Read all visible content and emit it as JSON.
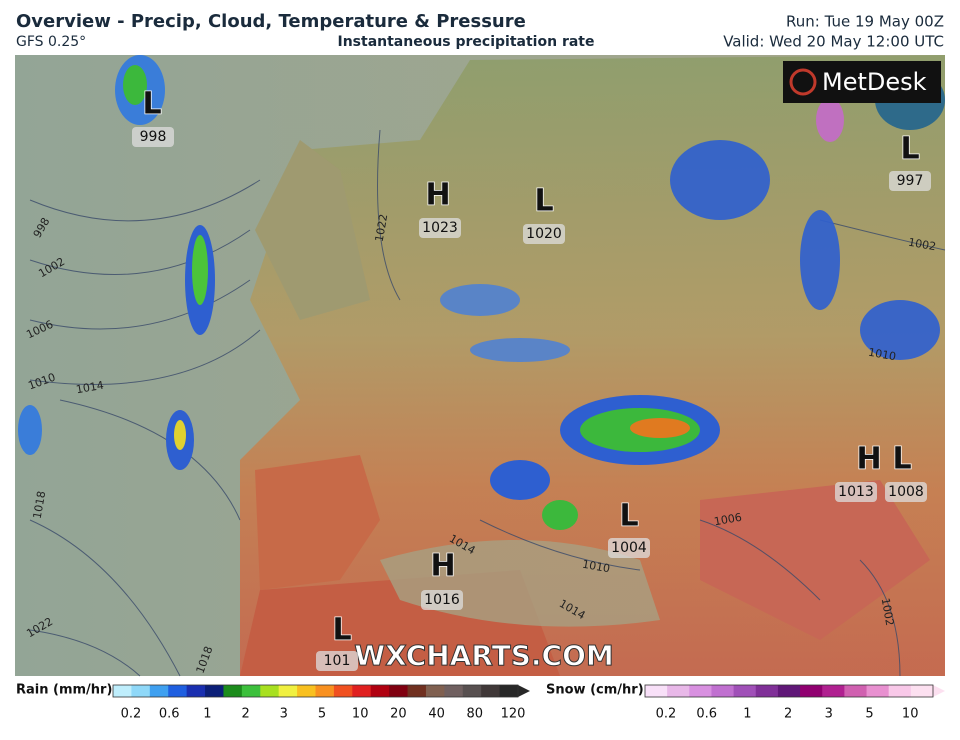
{
  "header": {
    "title": "Overview - Precip, Cloud, Temperature & Pressure",
    "model": "GFS 0.25°",
    "subtitle": "Instantaneous precipitation rate",
    "run": "Run: Tue 19 May 00Z",
    "valid": "Valid: Wed 20 May 12:00 UTC"
  },
  "logo": "MetDesk",
  "watermark": "WXCHARTS.COM",
  "pressure_centers": [
    {
      "type": "L",
      "value": 998
    },
    {
      "type": "L",
      "value": 997
    },
    {
      "type": "H",
      "value": 1023
    },
    {
      "type": "L",
      "value": 1020
    },
    {
      "type": "H",
      "value": 1013
    },
    {
      "type": "L",
      "value": 1008
    },
    {
      "type": "L",
      "value": 1004
    },
    {
      "type": "H",
      "value": 1016
    },
    {
      "type": "L",
      "value": 101
    }
  ],
  "isobar_labels": [
    998,
    1002,
    1006,
    1010,
    1014,
    1018,
    1022,
    1022,
    1018,
    1014,
    1010,
    1014,
    1006,
    1002,
    1002,
    1010
  ],
  "rain_legend": {
    "title": "Rain (mm/hr)",
    "labels": [
      0.2,
      0.6,
      1,
      2,
      3,
      5,
      10,
      20,
      40,
      80,
      120
    ]
  },
  "snow_legend": {
    "title": "Snow (cm/hr)",
    "labels": [
      0.2,
      0.6,
      1,
      2,
      3,
      5,
      10
    ]
  }
}
